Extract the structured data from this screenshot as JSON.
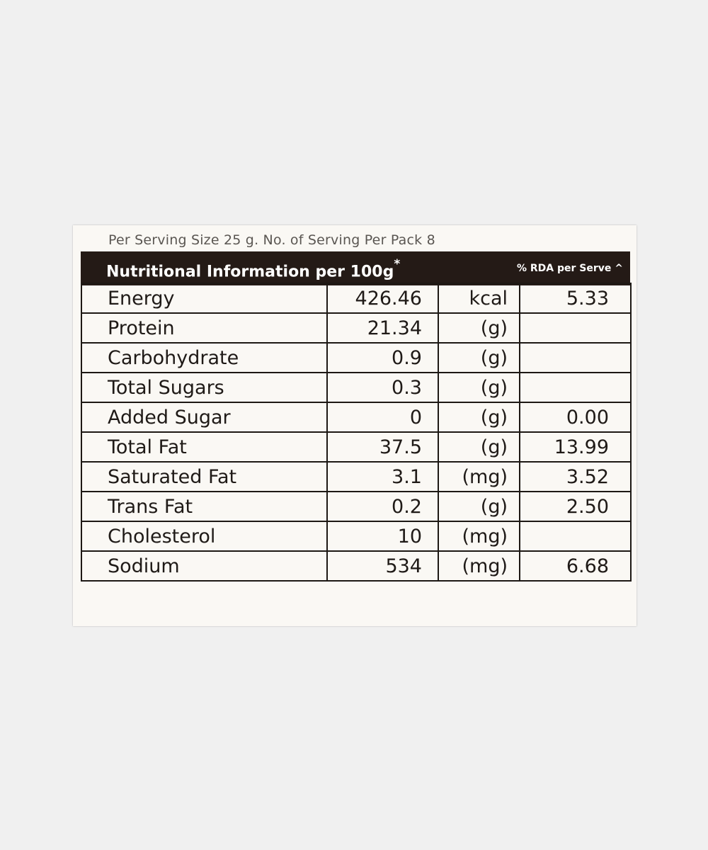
{
  "serving_info": "Per Serving Size 25 g. No. of Serving Per Pack 8",
  "header": {
    "title": "Nutritional Information per 100g",
    "title_mark": "*",
    "rda_label": "% RDA per Serve ^"
  },
  "rows": [
    {
      "name": "Energy",
      "value": "426.46",
      "unit": "kcal",
      "rda": "5.33"
    },
    {
      "name": "Protein",
      "value": "21.34",
      "unit": "(g)",
      "rda": ""
    },
    {
      "name": "Carbohydrate",
      "value": "0.9",
      "unit": "(g)",
      "rda": ""
    },
    {
      "name": "Total Sugars",
      "value": "0.3",
      "unit": "(g)",
      "rda": ""
    },
    {
      "name": "Added Sugar",
      "value": "0",
      "unit": "(g)",
      "rda": "0.00"
    },
    {
      "name": "Total Fat",
      "value": "37.5",
      "unit": "(g)",
      "rda": "13.99"
    },
    {
      "name": "Saturated Fat",
      "value": "3.1",
      "unit": "(mg)",
      "rda": "3.52"
    },
    {
      "name": "Trans Fat",
      "value": "0.2",
      "unit": "(g)",
      "rda": "2.50"
    },
    {
      "name": "Cholesterol",
      "value": "10",
      "unit": "(mg)",
      "rda": ""
    },
    {
      "name": "Sodium",
      "value": "534",
      "unit": "(mg)",
      "rda": "6.68"
    }
  ]
}
